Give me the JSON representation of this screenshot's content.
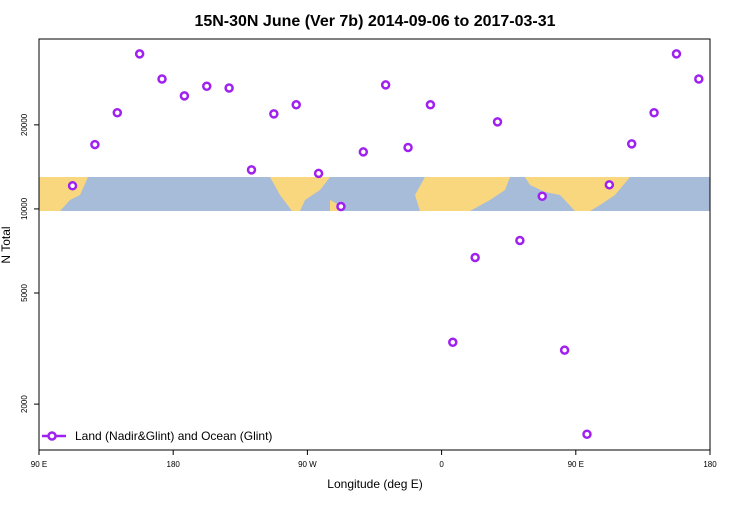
{
  "chart_data": {
    "type": "scatter",
    "title": "15N-30N June (Ver 7b)   2014-09-06 to 2017-03-31",
    "x_label": "Longitude (deg E)",
    "y_label": "N Total",
    "log_y": true,
    "legend_position": "lower left",
    "xlim": [
      90,
      540
    ],
    "xticks": [
      {
        "value": 90,
        "label": "90 E"
      },
      180,
      {
        "value": 270,
        "label": "90 W"
      },
      {
        "value": 360,
        "label": "0"
      },
      {
        "value": 450,
        "label": "90 E"
      },
      {
        "value": 540,
        "label": "180"
      }
    ],
    "ylim": [
      1370,
      40600
    ],
    "yticks": [
      2000,
      5000,
      10000,
      20000
    ],
    "series": [
      {
        "name": "Land (Nadir&Glint) and Ocean (Glint)",
        "color": "#a020f0",
        "x": [
          112.5,
          127.5,
          142.5,
          157.5,
          172.5,
          187.5,
          202.5,
          217.5,
          232.5,
          247.5,
          262.5,
          277.5,
          292.5,
          307.5,
          322.5,
          337.5,
          352.5,
          367.5,
          382.5,
          397.5,
          412.5,
          427.5,
          442.5,
          457.5,
          472.5,
          487.5,
          502.5,
          517.5,
          532.5
        ],
        "values": [
          12100,
          17000,
          22100,
          35900,
          29200,
          25400,
          27500,
          27100,
          13800,
          21900,
          23600,
          13400,
          10200,
          16000,
          27800,
          16600,
          23600,
          3330,
          6700,
          20500,
          7710,
          11100,
          3120,
          1560,
          12200,
          17100,
          22100,
          35900,
          29200
        ]
      }
    ]
  }
}
